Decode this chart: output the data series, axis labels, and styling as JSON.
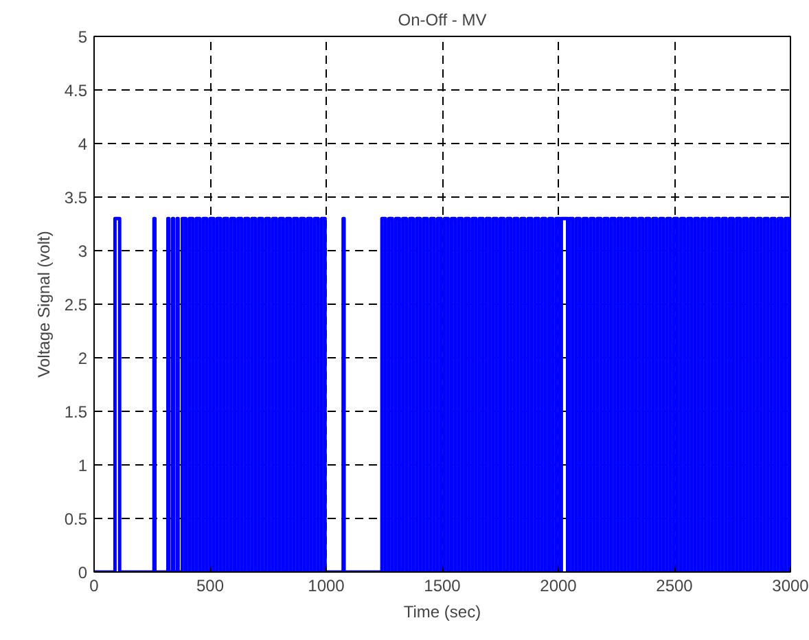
{
  "chart_data": {
    "type": "step",
    "title": "On-Off - MV",
    "xlabel": "Time (sec)",
    "ylabel": "Voltage Signal (volt)",
    "xlim": [
      0,
      3000
    ],
    "xticks": [
      0,
      500,
      1000,
      1500,
      2000,
      2500,
      3000
    ],
    "ylim": [
      0,
      5
    ],
    "yticks": [
      0,
      0.5,
      1,
      1.5,
      2,
      2.5,
      3,
      3.5,
      4,
      4.5,
      5
    ],
    "grid": true,
    "line_style": "solid",
    "marker": "none",
    "series": [
      {
        "color": "#0000ff",
        "x": [
          0,
          90,
          110,
          258,
          262,
          318,
          322,
          338,
          342,
          358,
          362,
          380,
          395,
          410,
          425,
          440,
          455,
          470,
          485,
          500,
          515,
          530,
          545,
          560,
          575,
          590,
          605,
          620,
          635,
          650,
          665,
          680,
          695,
          710,
          725,
          740,
          755,
          770,
          785,
          800,
          815,
          830,
          845,
          860,
          875,
          890,
          905,
          920,
          935,
          950,
          965,
          980,
          995,
          1073,
          1077,
          1240,
          1255,
          1270,
          1285,
          1300,
          1315,
          1330,
          1345,
          1360,
          1375,
          1390,
          1405,
          1420,
          1435,
          1450,
          1465,
          1480,
          1495,
          1510,
          1525,
          1540,
          1555,
          1570,
          1585,
          1600,
          1615,
          1630,
          1645,
          1660,
          1675,
          1690,
          1705,
          1720,
          1735,
          1750,
          1765,
          1780,
          1795,
          1810,
          1825,
          1840,
          1855,
          1870,
          1885,
          1900,
          1915,
          1930,
          1945,
          1960,
          1975,
          1990,
          2005,
          2013,
          2040,
          2048,
          2063,
          2078,
          2093,
          2108,
          2123,
          2138,
          2153,
          2168,
          2183,
          2198,
          2213,
          2228,
          2243,
          2258,
          2273,
          2288,
          2303,
          2318,
          2333,
          2348,
          2363,
          2378,
          2393,
          2408,
          2423,
          2438,
          2453,
          2468,
          2483,
          2498,
          2513,
          2528,
          2543,
          2558,
          2573,
          2588,
          2603,
          2618,
          2633,
          2648,
          2663,
          2678,
          2693,
          2708,
          2723,
          2738,
          2753,
          2768,
          2783,
          2798,
          2813,
          2828,
          2843,
          2858,
          2873,
          2888,
          2903,
          2918,
          2933,
          2948,
          2963,
          2978,
          2993
        ],
        "values": [
          0,
          3.3,
          0,
          3.3,
          0,
          3.3,
          0,
          3.3,
          0,
          3.3,
          0,
          3.3,
          0,
          3.3,
          0,
          3.3,
          0,
          3.3,
          0,
          3.3,
          0,
          3.3,
          0,
          3.3,
          0,
          3.3,
          0,
          3.3,
          0,
          3.3,
          0,
          3.3,
          0,
          3.3,
          0,
          3.3,
          0,
          3.3,
          0,
          3.3,
          0,
          3.3,
          0,
          3.3,
          0,
          3.3,
          0,
          3.3,
          0,
          3.3,
          0,
          3.3,
          0,
          3.3,
          0,
          3.3,
          0,
          3.3,
          0,
          3.3,
          0,
          3.3,
          0,
          3.3,
          0,
          3.3,
          0,
          3.3,
          0,
          3.3,
          0,
          3.3,
          0,
          3.3,
          0,
          3.3,
          0,
          3.3,
          0,
          3.3,
          0,
          3.3,
          0,
          3.3,
          0,
          3.3,
          0,
          3.3,
          0,
          3.3,
          0,
          3.3,
          0,
          3.3,
          0,
          3.3,
          0,
          3.3,
          0,
          3.3,
          0,
          3.3,
          0,
          3.3,
          0,
          3.3,
          0,
          3.3,
          0,
          3.3,
          0,
          3.3,
          0,
          3.3,
          0,
          3.3,
          0,
          3.3,
          0,
          3.3,
          0,
          3.3,
          0,
          3.3,
          0,
          3.3,
          0,
          3.3,
          0,
          3.3,
          0,
          3.3,
          0,
          3.3,
          0,
          3.3,
          0,
          3.3,
          0,
          3.3,
          0,
          3.3,
          0,
          3.3,
          0,
          3.3,
          0,
          3.3,
          0,
          3.3,
          0,
          3.3,
          0,
          3.3,
          0,
          3.3,
          0,
          3.3,
          0,
          3.3,
          0,
          3.3,
          0,
          3.3,
          0,
          3.3,
          0,
          3.3,
          0,
          3.3,
          0,
          3.3,
          0
        ]
      }
    ]
  }
}
